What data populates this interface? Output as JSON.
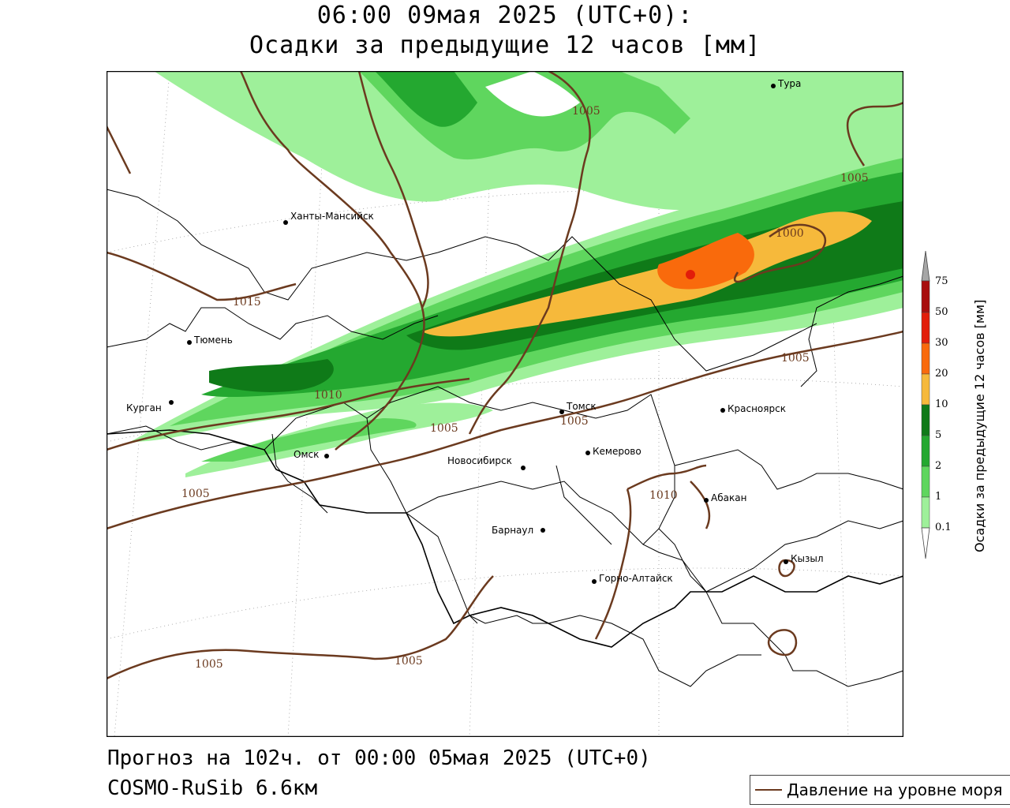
{
  "title": {
    "line1": "06:00 09мая 2025 (UTC+0):",
    "line2": "Осадки за предыдущие 12 часов [мм]"
  },
  "footer": {
    "forecast": "Прогноз на 102ч. от 00:00 05мая 2025 (UTC+0)",
    "model": "COSMO-RuSib 6.6км"
  },
  "legend": {
    "pressure_label": "Давление на уровне моря"
  },
  "colorbar": {
    "title": "Осадки за предыдущие 12 часов [мм]",
    "levels": [
      "0.1",
      "1",
      "2",
      "5",
      "10",
      "20",
      "30",
      "50",
      "75"
    ],
    "colors": [
      "#ffffff",
      "#9ef09a",
      "#5fd65e",
      "#24a830",
      "#0f7a18",
      "#f6b93b",
      "#f96a0c",
      "#e21d0a",
      "#a80e0e",
      "#a6a6a6"
    ]
  },
  "map": {
    "cities": [
      {
        "name": "Тура"
      },
      {
        "name": "Ханты-Мансийск"
      },
      {
        "name": "Тюмень"
      },
      {
        "name": "Курган"
      },
      {
        "name": "Омск"
      },
      {
        "name": "Новосибирск"
      },
      {
        "name": "Томск"
      },
      {
        "name": "Кемерово"
      },
      {
        "name": "Красноярск"
      },
      {
        "name": "Абакан"
      },
      {
        "name": "Барнаул"
      },
      {
        "name": "Горно-Алтайск"
      },
      {
        "name": "Кызыл"
      }
    ],
    "isobar_labels": [
      "1005",
      "1005",
      "1000",
      "1015",
      "1010",
      "1005",
      "1005",
      "1005",
      "1010",
      "1005",
      "1005",
      "1005"
    ],
    "pressure_line_color": "#6b3a1f"
  }
}
